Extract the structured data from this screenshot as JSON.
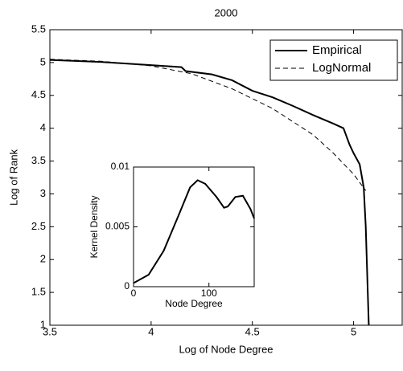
{
  "chart_data": [
    {
      "type": "line",
      "title": "2000",
      "x_label": "Log of Node Degree",
      "y_label": "Log of Rank",
      "xlim": [
        3.5,
        5.24
      ],
      "xticks": [
        3.5,
        4,
        4.5,
        5
      ],
      "ylim": [
        1,
        5.5
      ],
      "yticks": [
        1,
        1.5,
        2,
        2.5,
        3,
        3.5,
        4,
        4.5,
        5,
        5.5
      ],
      "legend": "upper right",
      "series": [
        {
          "name": "Empirical",
          "color": "#000000",
          "line_style": "solid",
          "line_width": 2,
          "x": [
            3.5,
            3.75,
            4.0,
            4.15,
            4.17,
            4.3,
            4.4,
            4.5,
            4.6,
            4.7,
            4.8,
            4.9,
            4.95,
            4.98,
            5.0,
            5.03,
            5.05,
            5.06,
            5.065,
            5.07,
            5.075
          ],
          "values": [
            5.04,
            5.01,
            4.96,
            4.93,
            4.87,
            4.82,
            4.73,
            4.57,
            4.47,
            4.34,
            4.2,
            4.07,
            4.0,
            3.75,
            3.62,
            3.45,
            3.1,
            2.5,
            2.0,
            1.5,
            1.0
          ]
        },
        {
          "name": "LogNormal",
          "color": "#000000",
          "line_style": "dashed",
          "line_width": 1,
          "x": [
            3.5,
            3.75,
            4.0,
            4.2,
            4.4,
            4.6,
            4.8,
            4.9,
            5.0,
            5.06
          ],
          "values": [
            5.05,
            5.02,
            4.95,
            4.83,
            4.6,
            4.3,
            3.9,
            3.62,
            3.3,
            3.05
          ]
        }
      ]
    },
    {
      "type": "line",
      "x_label": "Node Degree",
      "y_label": "Kernel Density",
      "xlim": [
        0,
        160
      ],
      "xticks": [
        0,
        100
      ],
      "ylim": [
        0,
        0.01
      ],
      "yticks": [
        0,
        0.005,
        0.01
      ],
      "series": [
        {
          "color": "#000000",
          "line_style": "solid",
          "line_width": 2,
          "x": [
            0,
            20,
            40,
            60,
            75,
            85,
            95,
            110,
            120,
            125,
            135,
            145,
            155,
            160
          ],
          "values": [
            0.0003,
            0.001,
            0.003,
            0.006,
            0.0083,
            0.0089,
            0.0086,
            0.0075,
            0.0066,
            0.0067,
            0.0075,
            0.0076,
            0.0065,
            0.0057
          ]
        }
      ]
    }
  ]
}
